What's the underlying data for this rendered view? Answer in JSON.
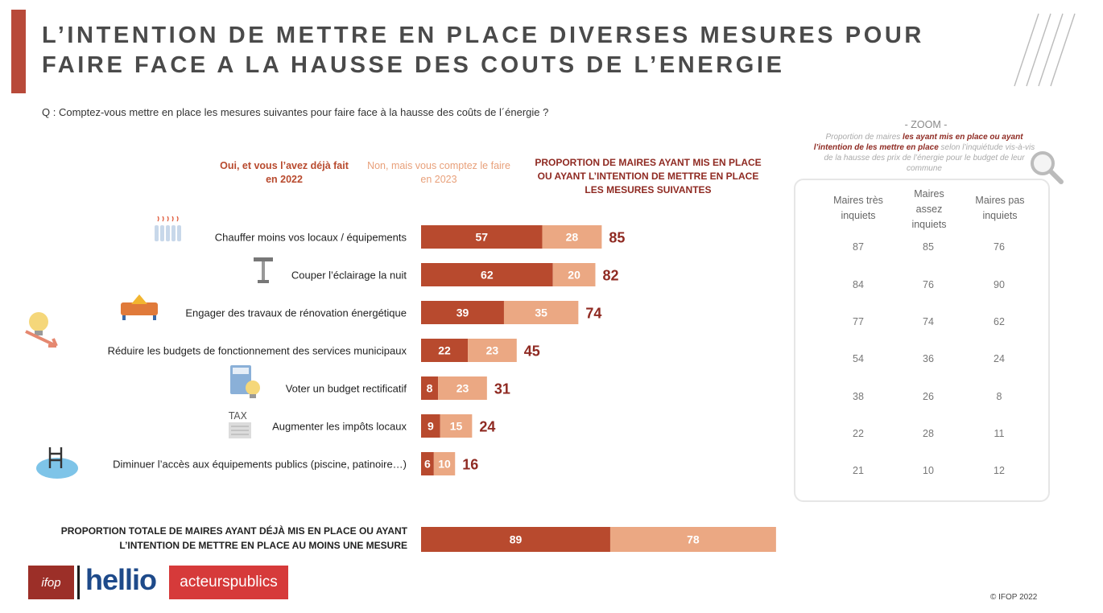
{
  "title": "L’intention de mettre en place diverses mesures pour faire face a la hausse des couts de l’energie",
  "question": "Q : Comptez-vous mettre en place les mesures suivantes pour faire face à la hausse des coûts de l´énergie ?",
  "legend": {
    "oui": "Oui, et vous l’avez déjà fait en 2022",
    "non": "Non, mais vous comptez le faire en 2023",
    "proportion": "PROPORTION DE MAIRES AYANT MIS EN PLACE OU AYANT L’INTENTION DE METTRE EN PLACE LES MESURES SUIVANTES"
  },
  "colors": {
    "oui": "#b84a2e",
    "non": "#eba883",
    "total_text": "#8f2a22",
    "title_bar": "#b84a3a"
  },
  "icons": [
    "heater-icon",
    "street-lamp-icon",
    "renovation-icon",
    "lightbulb-down-icon",
    "calculator-bulb-icon",
    "tax-document-icon",
    "swimming-pool-icon",
    "magnifier-icon"
  ],
  "chart_data": {
    "type": "bar",
    "orientation": "horizontal",
    "stacked": true,
    "categories": [
      "Chauffer moins vos locaux / équipements",
      "Couper l’éclairage la nuit",
      "Engager des travaux de rénovation énergétique",
      "Réduire les budgets de fonctionnement des services municipaux",
      "Voter un budget rectificatif",
      "Augmenter les impôts locaux",
      "Diminuer l’accès aux équipements publics (piscine, patinoire…)"
    ],
    "series": [
      {
        "name": "Oui, et vous l’avez déjà fait en 2022",
        "values": [
          57,
          62,
          39,
          22,
          8,
          9,
          6
        ]
      },
      {
        "name": "Non, mais vous comptez le faire en 2023",
        "values": [
          28,
          20,
          35,
          23,
          23,
          15,
          10
        ]
      }
    ],
    "totals": [
      85,
      82,
      74,
      45,
      31,
      24,
      16
    ],
    "total_row": {
      "label": "PROPORTION TOTALE DE MAIRES AYANT DÉJÀ MIS EN PLACE OU AYANT L’INTENTION DE METTRE EN PLACE AU MOINS UNE MESURE",
      "values": [
        89,
        78
      ]
    }
  },
  "zoom": {
    "title": "- ZOOM -",
    "subtitle_pre": "Proportion de maires ",
    "subtitle_hl": "les ayant mis en place ou ayant l’intention de les mettre en place",
    "subtitle_post": " selon l’inquiétude vis-à-vis de la hausse des prix de l’énergie pour le budget de leur commune",
    "columns": [
      "Maires très inquiets",
      "Maires assez inquiets",
      "Maires pas inquiets"
    ],
    "rows": [
      [
        "87",
        "85",
        "76"
      ],
      [
        "84",
        "76",
        "90"
      ],
      [
        "77",
        "74",
        "62"
      ],
      [
        "54",
        "36",
        "24"
      ],
      [
        "38",
        "26",
        "8"
      ],
      [
        "22",
        "28",
        "11"
      ],
      [
        "21",
        "10",
        "12"
      ]
    ]
  },
  "logos": {
    "ifop": "ifop",
    "hellio": "hellio",
    "acteurs_publics": "acteurspublics"
  },
  "copyright": "© IFOP 2022"
}
